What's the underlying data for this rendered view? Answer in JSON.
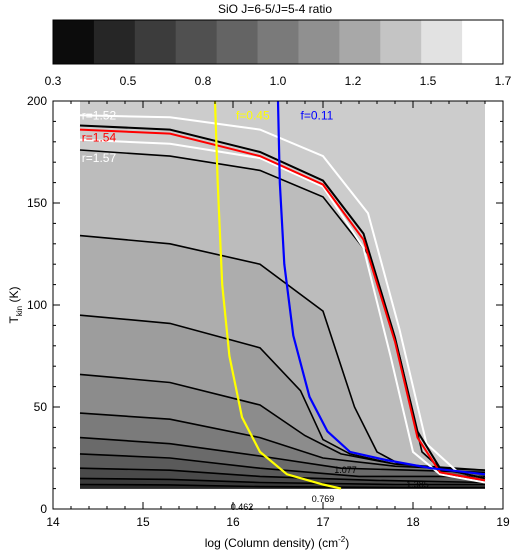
{
  "colorbar": {
    "title": "SiO J=6-5/J=5-4 ratio",
    "tick_labels": [
      "0.3",
      "0.5",
      "0.8",
      "1.0",
      "1.2",
      "1.5",
      "1.7"
    ],
    "colors": [
      "#0c0c0c",
      "#262626",
      "#3c3c3c",
      "#505050",
      "#646464",
      "#7a7a7a",
      "#909090",
      "#a8a8a8",
      "#c4c4c4",
      "#e2e2e2",
      "#ffffff"
    ]
  },
  "chart_data": {
    "type": "contour",
    "xlabel": "log (Column density) (cm",
    "xlabel_sup": "-2",
    "xlabel_end": ")",
    "ylabel_main": "T",
    "ylabel_sub": "kin",
    "ylabel_end": " (K)",
    "xlim": [
      14,
      19
    ],
    "ylim": [
      0,
      200
    ],
    "xticks": [
      "14",
      "15",
      "16",
      "17",
      "18",
      "19"
    ],
    "yticks": [
      "0",
      "50",
      "100",
      "150",
      "200"
    ],
    "data_extent": {
      "x": [
        14.3,
        18.8
      ],
      "y": [
        10,
        200
      ]
    },
    "background_fill": "#cccccc",
    "bands": [
      {
        "fill": "#bcbcbc",
        "top": [
          [
            14.3,
            176
          ],
          [
            15.3,
            173
          ],
          [
            16.3,
            166
          ],
          [
            17.0,
            153
          ],
          [
            17.5,
            125
          ],
          [
            17.85,
            75
          ],
          [
            18.1,
            28
          ],
          [
            18.4,
            16
          ],
          [
            18.8,
            13
          ]
        ]
      },
      {
        "fill": "#adadad",
        "top": [
          [
            14.3,
            134
          ],
          [
            15.3,
            130
          ],
          [
            16.3,
            120
          ],
          [
            17.0,
            97
          ],
          [
            17.35,
            50
          ],
          [
            17.6,
            28
          ],
          [
            17.85,
            22
          ],
          [
            18.2,
            19
          ],
          [
            18.8,
            17
          ]
        ]
      },
      {
        "fill": "#9d9d9d",
        "top": [
          [
            14.3,
            95
          ],
          [
            15.3,
            91
          ],
          [
            16.3,
            79
          ],
          [
            16.75,
            58
          ],
          [
            17.0,
            34
          ],
          [
            17.3,
            27
          ],
          [
            17.8,
            22
          ],
          [
            18.8,
            18
          ]
        ]
      },
      {
        "fill": "#8c8c8c",
        "top": [
          [
            14.3,
            66
          ],
          [
            15.3,
            62
          ],
          [
            16.3,
            51
          ],
          [
            16.8,
            36
          ],
          [
            17.2,
            27
          ],
          [
            17.8,
            22
          ],
          [
            18.8,
            19
          ]
        ]
      },
      {
        "fill": "#7b7b7b",
        "top": [
          [
            14.3,
            47
          ],
          [
            15.3,
            44
          ],
          [
            16.3,
            35
          ],
          [
            17.0,
            25
          ],
          [
            17.8,
            21
          ],
          [
            18.8,
            19
          ]
        ]
      },
      {
        "fill": "#6a6a6a",
        "top": [
          [
            14.3,
            35
          ],
          [
            15.3,
            32
          ],
          [
            16.3,
            26
          ],
          [
            17.2,
            20
          ],
          [
            18.8,
            18
          ]
        ]
      },
      {
        "fill": "#5a5a5a",
        "top": [
          [
            14.3,
            27
          ],
          [
            15.3,
            25
          ],
          [
            16.3,
            20
          ],
          [
            17.4,
            16
          ],
          [
            18.8,
            16
          ]
        ]
      },
      {
        "fill": "#4a4a4a",
        "top": [
          [
            14.3,
            20
          ],
          [
            15.3,
            19
          ],
          [
            16.3,
            16
          ],
          [
            17.6,
            14
          ],
          [
            18.8,
            13
          ]
        ]
      },
      {
        "fill": "#3a3a3a",
        "top": [
          [
            14.3,
            15
          ],
          [
            15.3,
            14.5
          ],
          [
            16.3,
            13
          ],
          [
            17.8,
            12
          ],
          [
            18.8,
            12
          ]
        ]
      },
      {
        "fill": "#2a2a2a",
        "top": [
          [
            14.3,
            12
          ],
          [
            15.3,
            11.8
          ],
          [
            16.3,
            11
          ],
          [
            18.0,
            10.5
          ],
          [
            18.8,
            10.5
          ]
        ]
      }
    ],
    "white_lines": [
      {
        "label": "r=1.52",
        "label_pos": [
          14.32,
          193
        ],
        "points": [
          [
            14.3,
            193
          ],
          [
            15.3,
            192
          ],
          [
            16.3,
            186
          ],
          [
            17.0,
            173
          ],
          [
            17.5,
            145
          ],
          [
            17.85,
            88
          ],
          [
            18.15,
            32
          ],
          [
            18.5,
            18
          ],
          [
            18.8,
            15
          ]
        ]
      },
      {
        "label": "r=1.57",
        "label_pos": [
          14.32,
          172
        ],
        "points": [
          [
            14.3,
            181
          ],
          [
            15.3,
            179
          ],
          [
            16.3,
            172
          ],
          [
            17.0,
            158
          ],
          [
            17.45,
            128
          ],
          [
            17.75,
            75
          ],
          [
            18.0,
            28
          ],
          [
            18.3,
            17
          ],
          [
            18.8,
            13
          ]
        ]
      }
    ],
    "black_line": {
      "points": [
        [
          14.3,
          188
        ],
        [
          15.3,
          186
        ],
        [
          16.3,
          175
        ],
        [
          17.0,
          161
        ],
        [
          17.45,
          135
        ],
        [
          17.8,
          84
        ],
        [
          18.05,
          38
        ],
        [
          18.3,
          20
        ],
        [
          18.8,
          15
        ]
      ]
    },
    "red_line": {
      "label": "r=1.54",
      "label_pos": [
        14.32,
        182
      ],
      "points": [
        [
          14.3,
          186
        ],
        [
          15.3,
          184
        ],
        [
          16.3,
          173
        ],
        [
          17.0,
          159
        ],
        [
          17.45,
          132
        ],
        [
          17.8,
          82
        ],
        [
          18.05,
          35
        ],
        [
          18.3,
          18
        ],
        [
          18.8,
          14
        ]
      ]
    },
    "contour_labels": [
      {
        "text": "1.077",
        "pos": [
          17.25,
          19
        ]
      },
      {
        "text": "1.385",
        "pos": [
          18.05,
          12
        ]
      },
      {
        "text": "0.769",
        "pos": [
          17.0,
          5
        ]
      },
      {
        "text": "0.462",
        "pos": [
          16.1,
          1
        ]
      }
    ],
    "yellow_line": {
      "label": "f=0.45",
      "label_pos": [
        16.22,
        193
      ],
      "points": [
        [
          15.8,
          200
        ],
        [
          15.83,
          160
        ],
        [
          15.88,
          110
        ],
        [
          15.96,
          75
        ],
        [
          16.1,
          45
        ],
        [
          16.3,
          28
        ],
        [
          16.6,
          17
        ],
        [
          17.0,
          12
        ],
        [
          17.2,
          10
        ]
      ]
    },
    "blue_line": {
      "label": "f=0.11",
      "label_pos": [
        16.75,
        193
      ],
      "points": [
        [
          16.5,
          200
        ],
        [
          16.52,
          160
        ],
        [
          16.57,
          120
        ],
        [
          16.67,
          85
        ],
        [
          16.85,
          55
        ],
        [
          17.05,
          38
        ],
        [
          17.3,
          28
        ],
        [
          17.7,
          24
        ],
        [
          18.2,
          20
        ],
        [
          18.8,
          17
        ]
      ]
    }
  }
}
